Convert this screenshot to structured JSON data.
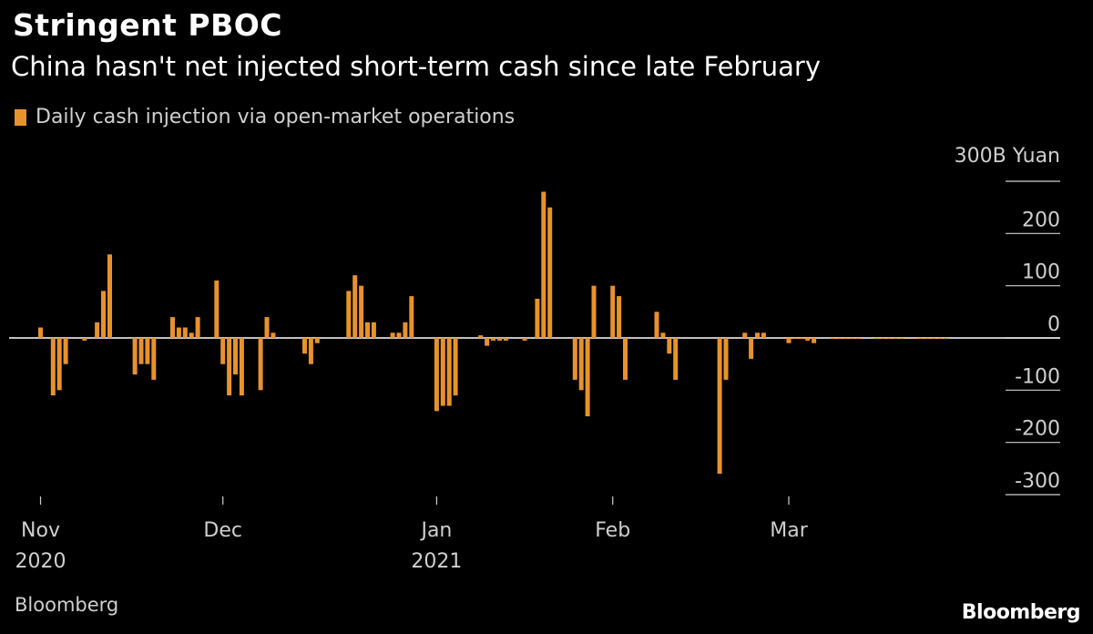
{
  "title": "Stringent PBOC",
  "subtitle": "China hasn't net injected short-term cash since late February",
  "legend_label": "Daily cash injection via open-market operations",
  "source": "Bloomberg",
  "brand": "Bloomberg",
  "colors": {
    "bar": "#e8922c",
    "background": "#000000",
    "text": "#ffffff",
    "muted": "#cfcfcf",
    "zero_line": "#ffffff"
  },
  "chart_data": {
    "type": "bar",
    "series": [
      {
        "name": "Daily cash injection via open-market operations"
      }
    ],
    "y_unit_label": "300B Yuan",
    "y_ticks": [
      {
        "value": 300,
        "label": ""
      },
      {
        "value": 200,
        "label": "200"
      },
      {
        "value": 100,
        "label": "100"
      },
      {
        "value": 0,
        "label": "0"
      },
      {
        "value": -100,
        "label": "-100"
      },
      {
        "value": -200,
        "label": "-200"
      },
      {
        "value": -300,
        "label": "-300"
      }
    ],
    "ylim": [
      -300,
      300
    ],
    "x_ticks": [
      {
        "date": "2020-11-02",
        "label": "Nov",
        "year": "2020"
      },
      {
        "date": "2020-12-01",
        "label": "Dec",
        "year": ""
      },
      {
        "date": "2021-01-04",
        "label": "Jan",
        "year": "2021"
      },
      {
        "date": "2021-02-01",
        "label": "Feb",
        "year": ""
      },
      {
        "date": "2021-03-01",
        "label": "Mar",
        "year": ""
      }
    ],
    "xlim": [
      "2020-10-28",
      "2021-04-01"
    ],
    "points": [
      {
        "date": "2020-10-30",
        "value": 0
      },
      {
        "date": "2020-11-02",
        "value": 20
      },
      {
        "date": "2020-11-03",
        "value": 0
      },
      {
        "date": "2020-11-04",
        "value": -110
      },
      {
        "date": "2020-11-05",
        "value": -100
      },
      {
        "date": "2020-11-06",
        "value": -50
      },
      {
        "date": "2020-11-09",
        "value": -5
      },
      {
        "date": "2020-11-10",
        "value": 0
      },
      {
        "date": "2020-11-11",
        "value": 30
      },
      {
        "date": "2020-11-12",
        "value": 90
      },
      {
        "date": "2020-11-13",
        "value": 160
      },
      {
        "date": "2020-11-16",
        "value": 0
      },
      {
        "date": "2020-11-17",
        "value": -70
      },
      {
        "date": "2020-11-18",
        "value": -50
      },
      {
        "date": "2020-11-19",
        "value": -50
      },
      {
        "date": "2020-11-20",
        "value": -80
      },
      {
        "date": "2020-11-23",
        "value": 40
      },
      {
        "date": "2020-11-24",
        "value": 20
      },
      {
        "date": "2020-11-25",
        "value": 20
      },
      {
        "date": "2020-11-26",
        "value": 10
      },
      {
        "date": "2020-11-27",
        "value": 40
      },
      {
        "date": "2020-11-30",
        "value": 110
      },
      {
        "date": "2020-12-01",
        "value": -50
      },
      {
        "date": "2020-12-02",
        "value": -110
      },
      {
        "date": "2020-12-03",
        "value": -70
      },
      {
        "date": "2020-12-04",
        "value": -110
      },
      {
        "date": "2020-12-07",
        "value": -100
      },
      {
        "date": "2020-12-08",
        "value": 40
      },
      {
        "date": "2020-12-09",
        "value": 10
      },
      {
        "date": "2020-12-10",
        "value": 0
      },
      {
        "date": "2020-12-11",
        "value": 0
      },
      {
        "date": "2020-12-14",
        "value": -30
      },
      {
        "date": "2020-12-15",
        "value": -50
      },
      {
        "date": "2020-12-16",
        "value": -10
      },
      {
        "date": "2020-12-17",
        "value": 0
      },
      {
        "date": "2020-12-18",
        "value": 0
      },
      {
        "date": "2020-12-21",
        "value": 90
      },
      {
        "date": "2020-12-22",
        "value": 120
      },
      {
        "date": "2020-12-23",
        "value": 100
      },
      {
        "date": "2020-12-24",
        "value": 30
      },
      {
        "date": "2020-12-25",
        "value": 30
      },
      {
        "date": "2020-12-28",
        "value": 10
      },
      {
        "date": "2020-12-29",
        "value": 10
      },
      {
        "date": "2020-12-30",
        "value": 30
      },
      {
        "date": "2020-12-31",
        "value": 80
      },
      {
        "date": "2021-01-04",
        "value": -140
      },
      {
        "date": "2021-01-05",
        "value": -130
      },
      {
        "date": "2021-01-06",
        "value": -130
      },
      {
        "date": "2021-01-07",
        "value": -110
      },
      {
        "date": "2021-01-08",
        "value": 0
      },
      {
        "date": "2021-01-11",
        "value": 5
      },
      {
        "date": "2021-01-12",
        "value": -15
      },
      {
        "date": "2021-01-13",
        "value": -5
      },
      {
        "date": "2021-01-14",
        "value": -5
      },
      {
        "date": "2021-01-15",
        "value": -5
      },
      {
        "date": "2021-01-18",
        "value": -5
      },
      {
        "date": "2021-01-19",
        "value": 0
      },
      {
        "date": "2021-01-20",
        "value": 75
      },
      {
        "date": "2021-01-21",
        "value": 280
      },
      {
        "date": "2021-01-22",
        "value": 250
      },
      {
        "date": "2021-01-25",
        "value": 0
      },
      {
        "date": "2021-01-26",
        "value": -80
      },
      {
        "date": "2021-01-27",
        "value": -100
      },
      {
        "date": "2021-01-28",
        "value": -150
      },
      {
        "date": "2021-01-29",
        "value": 100
      },
      {
        "date": "2021-02-01",
        "value": 100
      },
      {
        "date": "2021-02-02",
        "value": 80
      },
      {
        "date": "2021-02-03",
        "value": -80
      },
      {
        "date": "2021-02-04",
        "value": 0
      },
      {
        "date": "2021-02-05",
        "value": 0
      },
      {
        "date": "2021-02-08",
        "value": 50
      },
      {
        "date": "2021-02-09",
        "value": 10
      },
      {
        "date": "2021-02-10",
        "value": -30
      },
      {
        "date": "2021-02-11",
        "value": -80
      },
      {
        "date": "2021-02-18",
        "value": -260
      },
      {
        "date": "2021-02-19",
        "value": -80
      },
      {
        "date": "2021-02-22",
        "value": 10
      },
      {
        "date": "2021-02-23",
        "value": -40
      },
      {
        "date": "2021-02-24",
        "value": 10
      },
      {
        "date": "2021-02-25",
        "value": 10
      },
      {
        "date": "2021-02-26",
        "value": 0
      },
      {
        "date": "2021-03-01",
        "value": -10
      },
      {
        "date": "2021-03-02",
        "value": -2
      },
      {
        "date": "2021-03-03",
        "value": -2
      },
      {
        "date": "2021-03-04",
        "value": -5
      },
      {
        "date": "2021-03-05",
        "value": -10
      },
      {
        "date": "2021-03-08",
        "value": -2
      },
      {
        "date": "2021-03-09",
        "value": -2
      },
      {
        "date": "2021-03-10",
        "value": -2
      },
      {
        "date": "2021-03-11",
        "value": -2
      },
      {
        "date": "2021-03-12",
        "value": -2
      },
      {
        "date": "2021-03-15",
        "value": -2
      },
      {
        "date": "2021-03-16",
        "value": -2
      },
      {
        "date": "2021-03-17",
        "value": -2
      },
      {
        "date": "2021-03-18",
        "value": -2
      },
      {
        "date": "2021-03-19",
        "value": -2
      },
      {
        "date": "2021-03-22",
        "value": -2
      },
      {
        "date": "2021-03-23",
        "value": -2
      },
      {
        "date": "2021-03-24",
        "value": -2
      },
      {
        "date": "2021-03-25",
        "value": -2
      },
      {
        "date": "2021-03-26",
        "value": -2
      }
    ]
  }
}
